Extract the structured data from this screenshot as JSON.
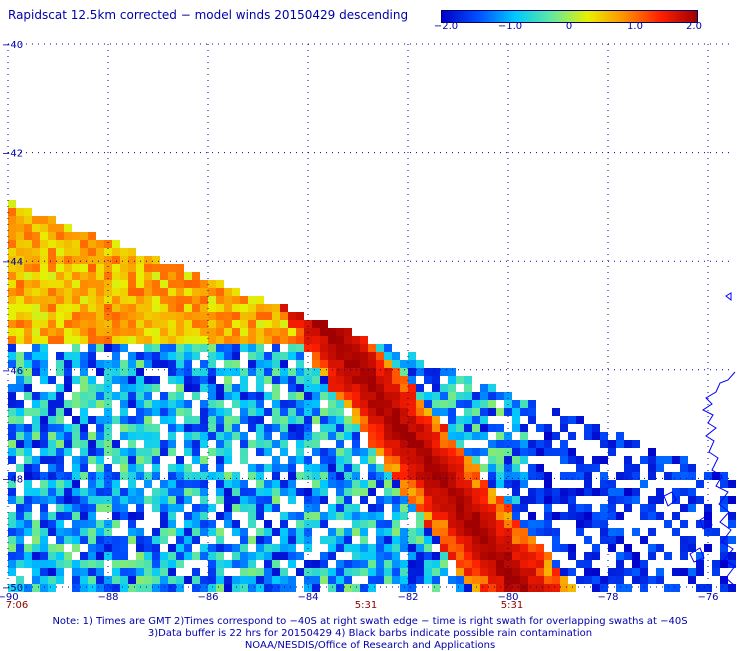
{
  "header": {
    "title": "Rapidscat 12.5km corrected − model winds 20150429 descending"
  },
  "colorbar": {
    "ticks": [
      "−2.0",
      "−1.0",
      "0",
      "1.0",
      "2.0"
    ],
    "range": [
      -2.0,
      2.0
    ],
    "colors": [
      "#0000c8",
      "#0050ff",
      "#00c8ff",
      "#60e8a0",
      "#e8f000",
      "#ff9000",
      "#ff2000",
      "#a00000"
    ]
  },
  "map": {
    "lat_ticks": [
      "−40",
      "−42",
      "−44",
      "−46",
      "−48",
      "−50"
    ],
    "lon_ticks": [
      "−90",
      "−88",
      "−86",
      "−84",
      "−82",
      "−80",
      "−78",
      "−76"
    ],
    "time_labels": [
      "7:06",
      "5:31",
      "5:31"
    ],
    "time_color": "#8b0000",
    "lat_range": [
      -50,
      -40
    ],
    "lon_range": [
      -90,
      -75.5
    ]
  },
  "footer": {
    "note_line1": "Note: 1) Times are GMT 2)Times correspond to −40S at right swath edge − time is right swath for overlapping swaths at −40S",
    "note_line2": "3)Data buffer is 22 hrs for 20150429 4) Black barbs indicate possible rain contamination",
    "credit": "NOAA/NESDIS/Office of Research and Applications"
  }
}
